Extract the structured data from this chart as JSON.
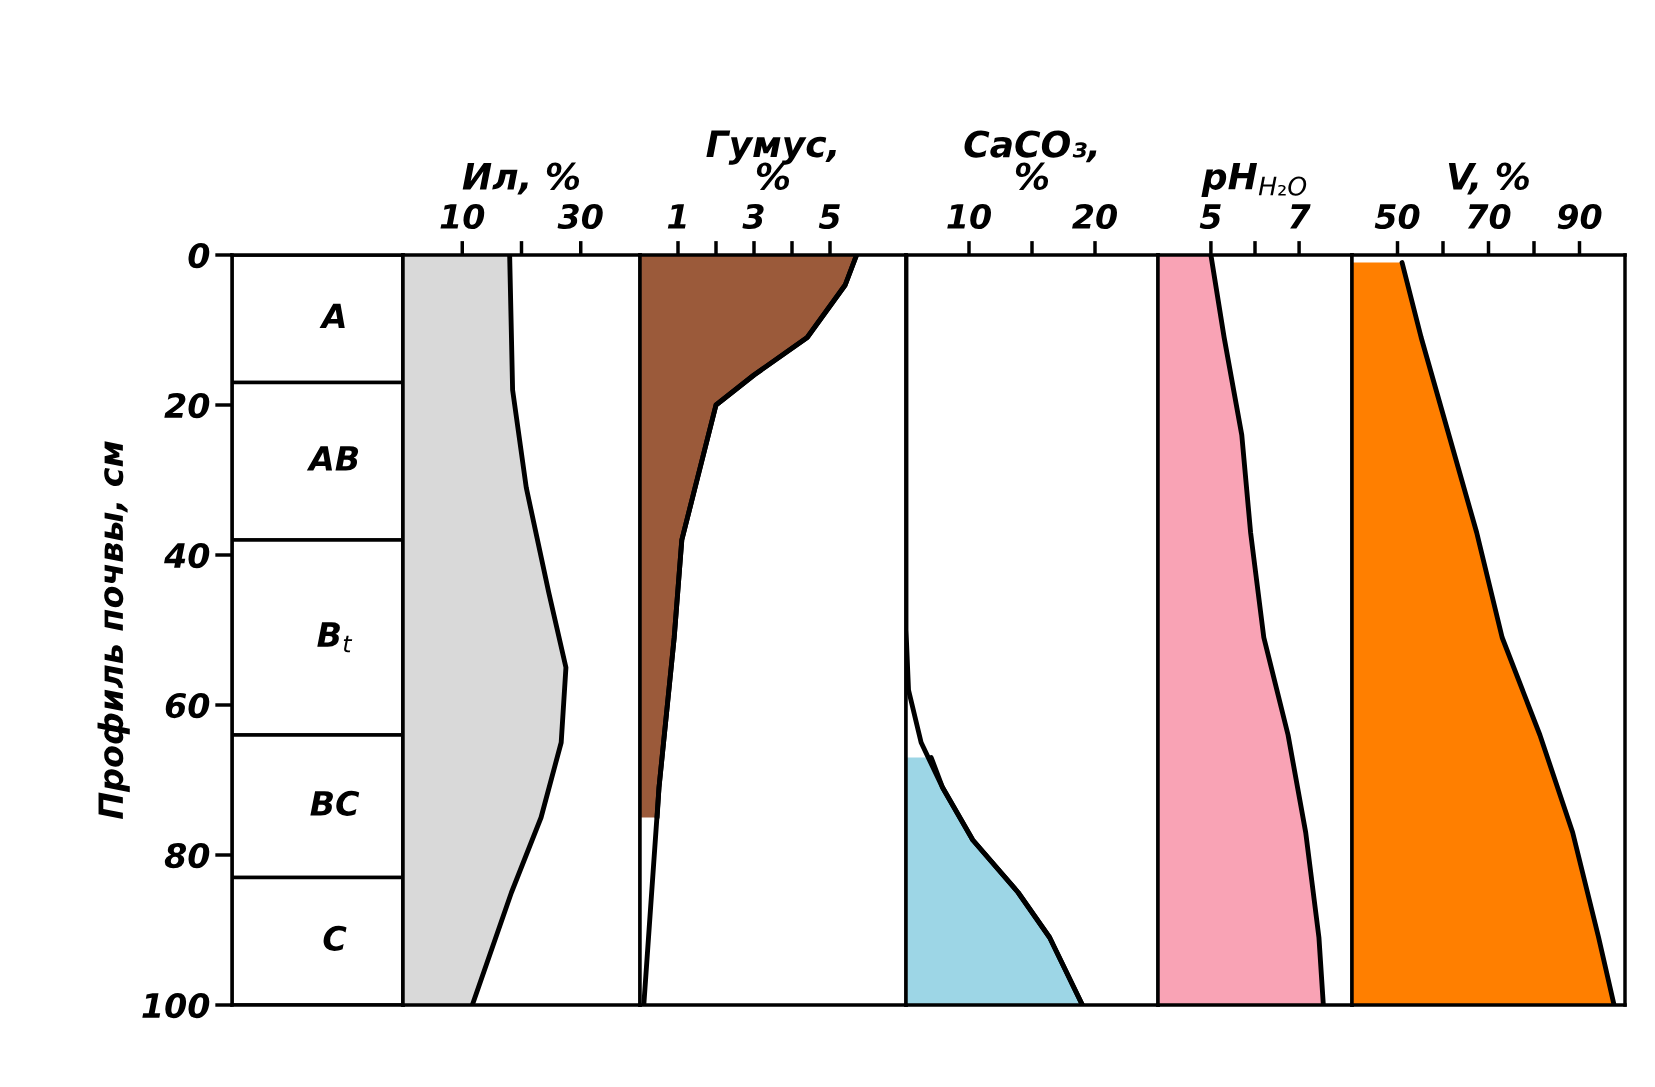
{
  "chart_data": [
    {
      "type": "bar",
      "stacked": true,
      "categories": [
        null
      ],
      "ylabel": "Профиль почвы, см",
      "ylim": [
        100,
        0
      ],
      "yticks": [
        0,
        20,
        40,
        60,
        80,
        100
      ],
      "tick_labels": "y",
      "series": [
        {
          "name": "A",
          "color": "#ffffff",
          "values": [
            17
          ]
        },
        {
          "name": "AB",
          "color": "#ffffff",
          "values": [
            21
          ]
        },
        {
          "name": "B$_{t}$",
          "color": "#ffffff",
          "values": [
            26
          ]
        },
        {
          "name": "BC",
          "color": "#ffffff",
          "values": [
            19
          ]
        },
        {
          "name": "C",
          "color": "#ffffff",
          "values": [
            17
          ]
        }
      ]
    },
    {
      "type": "area",
      "orientation": "horizontal",
      "title": "Ил, %",
      "xlim": [
        0,
        40
      ],
      "xticks": [
        10,
        {
          "value": 20,
          "label": null
        },
        30
      ],
      "ylim": [
        100,
        0
      ],
      "tick_labels": "x",
      "series": [
        {
          "type": "area",
          "color": "#d9d9d9",
          "x": [
            0,
            18,
            31,
            45,
            55,
            65,
            75,
            85,
            100
          ],
          "values": [
            18,
            18.5,
            20.8,
            24.6,
            27.5,
            26.7,
            23.3,
            18.3,
            11.7
          ]
        }
      ]
    },
    {
      "type": "area",
      "orientation": "horizontal",
      "title": "Гумус,\n%",
      "xlim": [
        0,
        7
      ],
      "xticks": [
        1,
        {
          "value": 2,
          "label": null
        },
        3,
        {
          "value": 4,
          "label": null
        },
        5
      ],
      "ylim": [
        100,
        0
      ],
      "tick_labels": "x",
      "series": [
        {
          "type": "area",
          "color": "#9b5a3a",
          "x": [
            0,
            4,
            11,
            16,
            20,
            28,
            38,
            51,
            71,
            75
          ],
          "values": [
            5.7,
            5.4,
            4.4,
            3.0,
            2.0,
            1.6,
            1.1,
            0.9,
            0.5,
            0.45
          ]
        },
        {
          "type": "line",
          "color": "#000000",
          "x": [
            0,
            4,
            11,
            16,
            20,
            28,
            38,
            51,
            71,
            100
          ],
          "values": [
            5.7,
            5.4,
            4.4,
            3.0,
            2.0,
            1.6,
            1.1,
            0.9,
            0.5,
            0.1
          ]
        }
      ]
    },
    {
      "type": "area",
      "orientation": "horizontal",
      "title": "CaCO₃,\n%",
      "xlim": [
        5,
        25
      ],
      "xticks": [
        10,
        {
          "value": 15,
          "label": null
        },
        20
      ],
      "ylim": [
        100,
        0
      ],
      "tick_labels": "x",
      "series": [
        {
          "type": "area",
          "color": "#9dd6e6",
          "x": [
            67,
            71,
            78,
            85,
            91,
            100
          ],
          "values": [
            7.0,
            7.9,
            10.3,
            13.9,
            16.4,
            19
          ]
        },
        {
          "type": "line",
          "color": "#000000",
          "x": [
            0,
            50,
            58,
            65,
            71,
            78,
            85,
            91,
            100
          ],
          "values": [
            5,
            5,
            5.2,
            6.2,
            7.9,
            10.3,
            13.9,
            16.4,
            19
          ]
        }
      ]
    },
    {
      "type": "area",
      "orientation": "horizontal",
      "title": "pH$_{H₂O}$",
      "xlim": [
        3.8,
        8.2
      ],
      "xticks": [
        5,
        {
          "value": 6,
          "label": null
        },
        7
      ],
      "ylim": [
        100,
        0
      ],
      "tick_labels": "x",
      "series": [
        {
          "type": "area",
          "color": "#f9a3b5",
          "x": [
            0,
            11,
            24,
            37,
            51,
            64,
            77,
            91,
            100
          ],
          "values": [
            5.0,
            5.3,
            5.7,
            5.9,
            6.2,
            6.75,
            7.15,
            7.45,
            7.55
          ]
        }
      ]
    },
    {
      "type": "area",
      "orientation": "horizontal",
      "title": "V, %",
      "xlim": [
        40,
        100
      ],
      "xticks": [
        50,
        {
          "value": 60,
          "label": null
        },
        70,
        {
          "value": 80,
          "label": null
        },
        90
      ],
      "ylim": [
        100,
        0
      ],
      "tick_labels": "x",
      "series": [
        {
          "type": "area",
          "color": "#ff7f00",
          "x": [
            1,
            11,
            24,
            37,
            51,
            64,
            77,
            91,
            100
          ],
          "values": [
            51,
            55.2,
            61.3,
            67.4,
            73,
            81.3,
            88.5,
            94.2,
            97.6
          ]
        }
      ]
    }
  ]
}
